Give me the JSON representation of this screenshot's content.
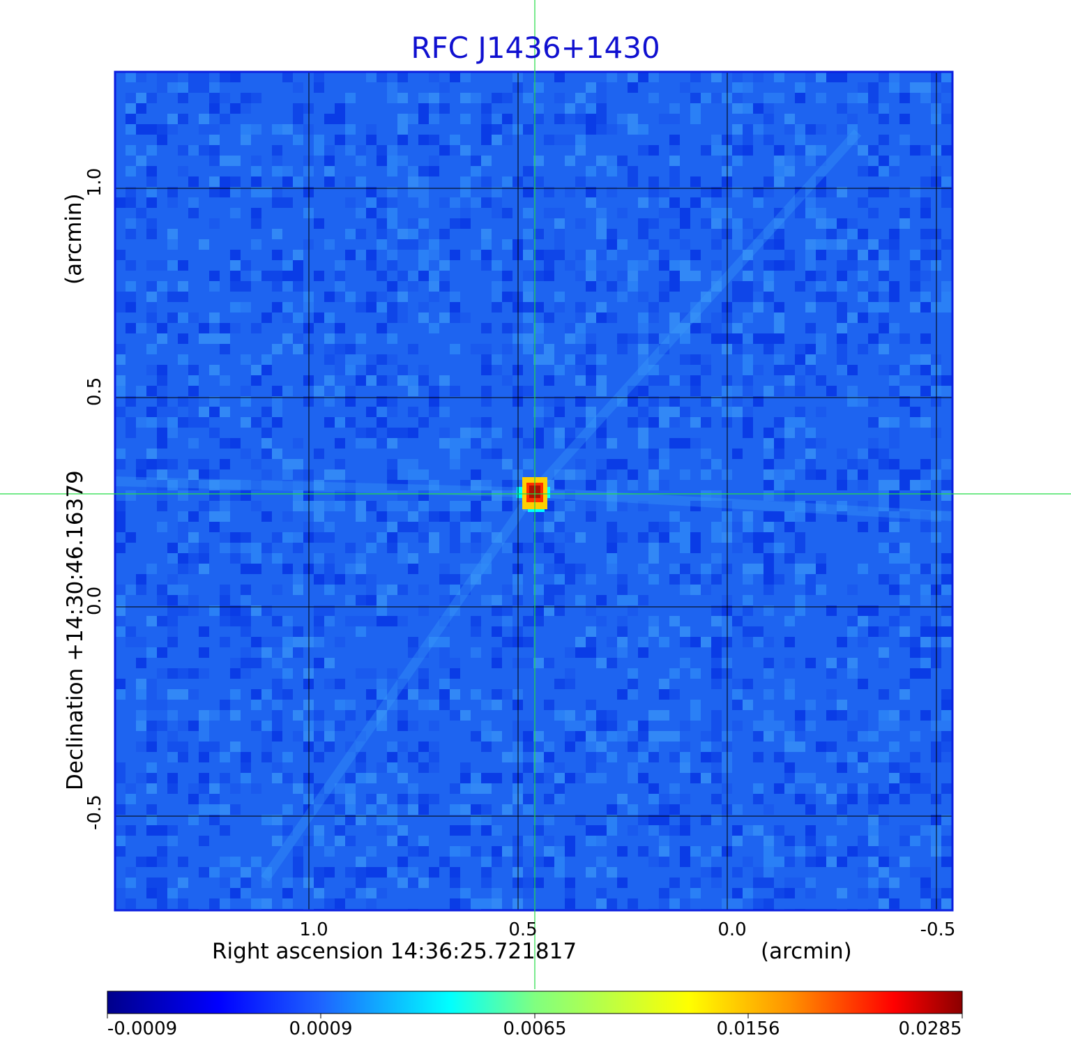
{
  "title": "RFC J1436+1430",
  "y_axis": {
    "label_main": "Declination  +14:30:46.16379",
    "label_unit": "(arcmin)",
    "ticks": [
      "1.0",
      "0.5",
      "0.0",
      "-0.5"
    ]
  },
  "x_axis": {
    "label_main": "Right ascension  14:36:25.721817",
    "label_unit": "(arcmin)",
    "ticks": [
      "1.0",
      "0.5",
      "0.0",
      "-0.5"
    ]
  },
  "colorbar": {
    "ticks": [
      "-0.0009",
      "0.0009",
      "0.0065",
      "0.0156",
      "0.0285"
    ],
    "colormap": [
      "#00008b",
      "#0000ff",
      "#1e64ff",
      "#00ffff",
      "#80ff80",
      "#ffff00",
      "#ff8000",
      "#ff0000",
      "#8b0000"
    ]
  },
  "image": {
    "background_color": "#1e64f0",
    "grid_color": "#000000",
    "crosshair_color": "#22dd44",
    "peak_colors": [
      "#b01000",
      "#ff3000",
      "#ffd000",
      "#00ffff"
    ]
  }
}
